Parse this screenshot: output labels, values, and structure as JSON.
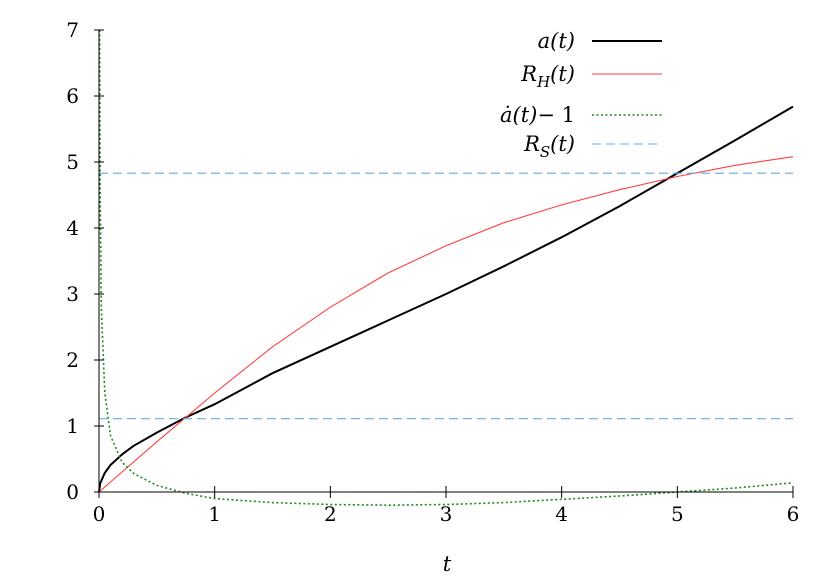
{
  "chart_data": {
    "type": "line",
    "xlabel": "t",
    "ylabel": "",
    "xlim": [
      0,
      6
    ],
    "ylim": [
      0,
      7
    ],
    "x_ticks": [
      "0",
      "1",
      "2",
      "3",
      "4",
      "5",
      "6"
    ],
    "y_ticks": [
      "0",
      "1",
      "2",
      "3",
      "4",
      "5",
      "6",
      "7"
    ],
    "grid": false,
    "legend_position": "top-right",
    "series": [
      {
        "name": "a(t)",
        "legend": {
          "base": "a(t)",
          "sub": "",
          "tail": ""
        },
        "color": "#000000",
        "style": "solid",
        "x": [
          0,
          0.01,
          0.05,
          0.1,
          0.2,
          0.3,
          0.5,
          0.75,
          1,
          1.5,
          2,
          2.5,
          3,
          3.5,
          4,
          4.5,
          5,
          5.5,
          6
        ],
        "y": [
          0,
          0.13,
          0.29,
          0.41,
          0.57,
          0.7,
          0.9,
          1.13,
          1.33,
          1.8,
          2.2,
          2.6,
          3.0,
          3.42,
          3.86,
          4.33,
          4.83,
          5.33,
          5.84
        ]
      },
      {
        "name": "R_H(t)",
        "legend": {
          "base": "R",
          "sub": "H",
          "tail": "(t)"
        },
        "color": "#ff4040",
        "style": "solid",
        "x": [
          0,
          0.25,
          0.5,
          0.75,
          1,
          1.5,
          2,
          2.5,
          3,
          3.5,
          4,
          4.5,
          5,
          5.5,
          6
        ],
        "y": [
          0,
          0.38,
          0.76,
          1.13,
          1.5,
          2.2,
          2.8,
          3.32,
          3.73,
          4.08,
          4.35,
          4.58,
          4.78,
          4.95,
          5.08
        ]
      },
      {
        "name": "ȧ(t)− 1",
        "legend": {
          "dot": "ȧ",
          "base": "(t)",
          "sub": "",
          "tail": "− 1"
        },
        "color": "#1a8a1a",
        "style": "dotted",
        "x": [
          0.005,
          0.01,
          0.02,
          0.05,
          0.1,
          0.2,
          0.3,
          0.5,
          0.75,
          1,
          1.5,
          2,
          2.5,
          3,
          3.5,
          4,
          4.5,
          5,
          5.5,
          6
        ],
        "y": [
          7,
          4.5,
          2.8,
          1.5,
          0.85,
          0.45,
          0.28,
          0.1,
          -0.02,
          -0.1,
          -0.16,
          -0.19,
          -0.2,
          -0.19,
          -0.16,
          -0.11,
          -0.06,
          0.0,
          0.06,
          0.14
        ]
      },
      {
        "name": "R_S(t)",
        "legend": {
          "base": "R",
          "sub": "S",
          "tail": "(t)"
        },
        "color": "#6aa6e8",
        "style": "dashed",
        "x": [
          0,
          6
        ],
        "y": [
          4.83,
          4.83
        ],
        "extra_lines": [
          [
            1.11,
            1.11
          ]
        ]
      }
    ]
  }
}
